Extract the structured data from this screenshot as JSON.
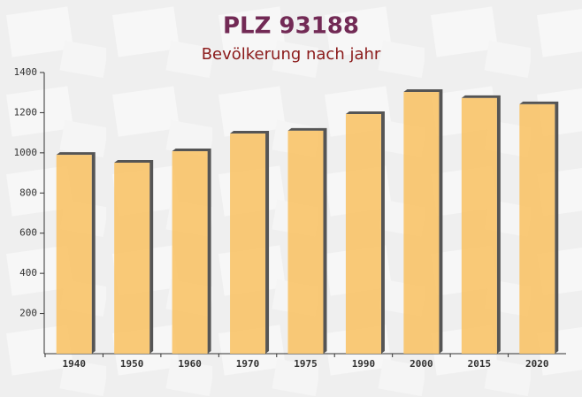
{
  "chart_data": {
    "type": "bar",
    "title": "PLZ 93188",
    "subtitle": "Bevölkerung nach jahr",
    "categories": [
      "1940",
      "1950",
      "1960",
      "1970",
      "1975",
      "1990",
      "2000",
      "2015",
      "2020"
    ],
    "values": [
      990,
      951,
      1008,
      1096,
      1110,
      1193,
      1303,
      1273,
      1242
    ],
    "color": "#f9c46b",
    "ylim": [
      0,
      1400
    ],
    "yticks": [
      200,
      400,
      600,
      800,
      1000,
      1200,
      1400
    ]
  }
}
